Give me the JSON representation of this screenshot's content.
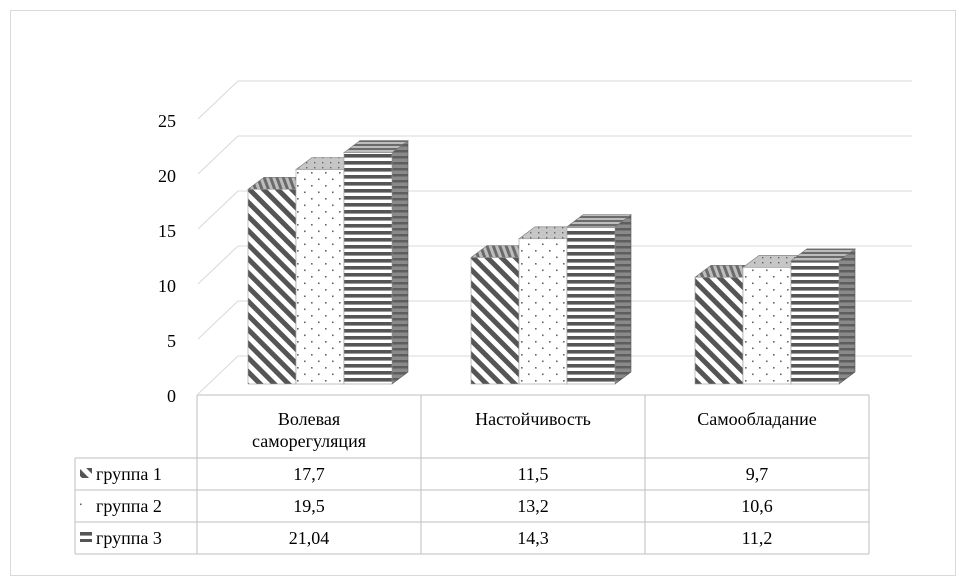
{
  "chart_data": {
    "type": "bar",
    "style": "3d-clustered-column-with-data-table",
    "categories": [
      "Волевая саморегуляция",
      "Настойчивость",
      "Самообладание"
    ],
    "category_lines": [
      [
        "Волевая",
        "саморегуляция"
      ],
      [
        "Настойчивость"
      ],
      [
        "Самообладание"
      ]
    ],
    "series": [
      {
        "name": "группа 1",
        "values": [
          17.7,
          11.5,
          9.7
        ],
        "labels": [
          "17,7",
          "11,5",
          "9,7"
        ],
        "pattern": "diagonal-stripes"
      },
      {
        "name": "группа 2",
        "values": [
          19.5,
          13.2,
          10.6
        ],
        "labels": [
          "19,5",
          "13,2",
          "10,6"
        ],
        "pattern": "dots"
      },
      {
        "name": "группа 3",
        "values": [
          21.04,
          14.3,
          11.2
        ],
        "labels": [
          "21,04",
          "14,3",
          "11,2"
        ],
        "pattern": "horizontal-stripes"
      }
    ],
    "y_ticks": [
      "0",
      "5",
      "10",
      "15",
      "20",
      "25"
    ],
    "ylim": [
      0,
      25
    ],
    "grid": true,
    "legend": "data-table",
    "colors": {
      "bar_fill": "#555555",
      "bar_side": "#7a7a7a",
      "gridline": "#d9d9d9",
      "table_border": "#bfbfbf"
    }
  }
}
